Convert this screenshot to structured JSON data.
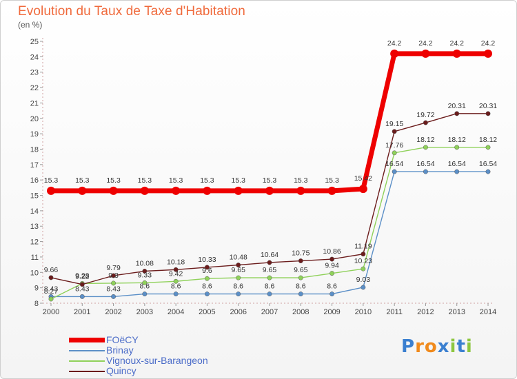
{
  "header": {
    "title": "Evolution du Taux de Taxe d'Habitation",
    "unit": "(en %)"
  },
  "chart_data": {
    "type": "line",
    "title": "Evolution du Taux de Taxe d'Habitation",
    "ylabel": "(en %)",
    "xlabel": "",
    "x": [
      2000,
      2001,
      2002,
      2003,
      2004,
      2005,
      2006,
      2007,
      2008,
      2009,
      2010,
      2011,
      2012,
      2013,
      2014
    ],
    "ylim": [
      8,
      25
    ],
    "yticks": [
      8,
      9,
      10,
      11,
      12,
      13,
      14,
      15,
      16,
      17,
      18,
      19,
      20,
      21,
      22,
      23,
      24,
      25
    ],
    "grid": false,
    "legend_position": "bottom-left",
    "series": [
      {
        "name": "FOëCY",
        "color": "#ee0000",
        "values": [
          15.3,
          15.3,
          15.3,
          15.3,
          15.3,
          15.3,
          15.3,
          15.3,
          15.3,
          15.3,
          15.42,
          24.2,
          24.2,
          24.2,
          24.2
        ],
        "labels": [
          "15.3",
          "15.3",
          "15.3",
          "15.3",
          "15.3",
          "15.3",
          "15.3",
          "15.3",
          "15.3",
          "15.3",
          "15.42",
          "24.2",
          "24.2",
          "24.2",
          "24.2"
        ]
      },
      {
        "name": "Brinay",
        "color": "#5b8fc7",
        "values": [
          8.43,
          8.43,
          8.43,
          8.6,
          8.6,
          8.6,
          8.6,
          8.6,
          8.6,
          8.6,
          9.03,
          16.54,
          16.54,
          16.54,
          16.54
        ],
        "labels": [
          "8.43",
          "8.43",
          "8.43",
          "8.6",
          "8.6",
          "8.6",
          "8.6",
          "8.6",
          "8.6",
          "8.6",
          "9.03",
          "16.54",
          "16.54",
          "16.54",
          "16.54"
        ]
      },
      {
        "name": "Vignoux-sur-Barangeon",
        "color": "#8fd15a",
        "values": [
          8.27,
          9.28,
          9.3,
          9.33,
          9.42,
          9.6,
          9.65,
          9.65,
          9.65,
          9.94,
          10.23,
          17.76,
          18.12,
          18.12,
          18.12
        ],
        "labels": [
          "8.27",
          "9.28",
          "9.3",
          "9.33",
          "9.42",
          "9.6",
          "9.65",
          "9.65",
          "9.65",
          "9.94",
          "10.23",
          "17.76",
          "18.12",
          "18.12",
          "18.12"
        ]
      },
      {
        "name": "Quincy",
        "color": "#6b1c1c",
        "values": [
          9.66,
          9.22,
          9.79,
          10.08,
          10.18,
          10.33,
          10.48,
          10.64,
          10.75,
          10.86,
          11.19,
          19.15,
          19.72,
          20.31,
          20.31
        ],
        "labels": [
          "9.66",
          "9.22",
          "9.79",
          "10.08",
          "10.18",
          "10.33",
          "10.48",
          "10.64",
          "10.75",
          "10.86",
          "11.19",
          "19.15",
          "19.72",
          "20.31",
          "20.31"
        ]
      }
    ]
  },
  "legend": {
    "items": [
      {
        "label": "FOëCY",
        "color": "#ee0000"
      },
      {
        "label": "Brinay",
        "color": "#5b8fc7"
      },
      {
        "label": "Vignoux-sur-Barangeon",
        "color": "#8fd15a"
      },
      {
        "label": "Quincy",
        "color": "#6b1c1c"
      }
    ]
  },
  "brand": {
    "name": "Proxiti",
    "letters": [
      "P",
      "r",
      "o",
      "x",
      "i",
      "t",
      "i"
    ],
    "colors": [
      "#3a7fd0",
      "#f08a1c",
      "#f08a1c",
      "#3a7fd0",
      "#8dc63f",
      "#3a7fd0",
      "#8dc63f"
    ]
  }
}
